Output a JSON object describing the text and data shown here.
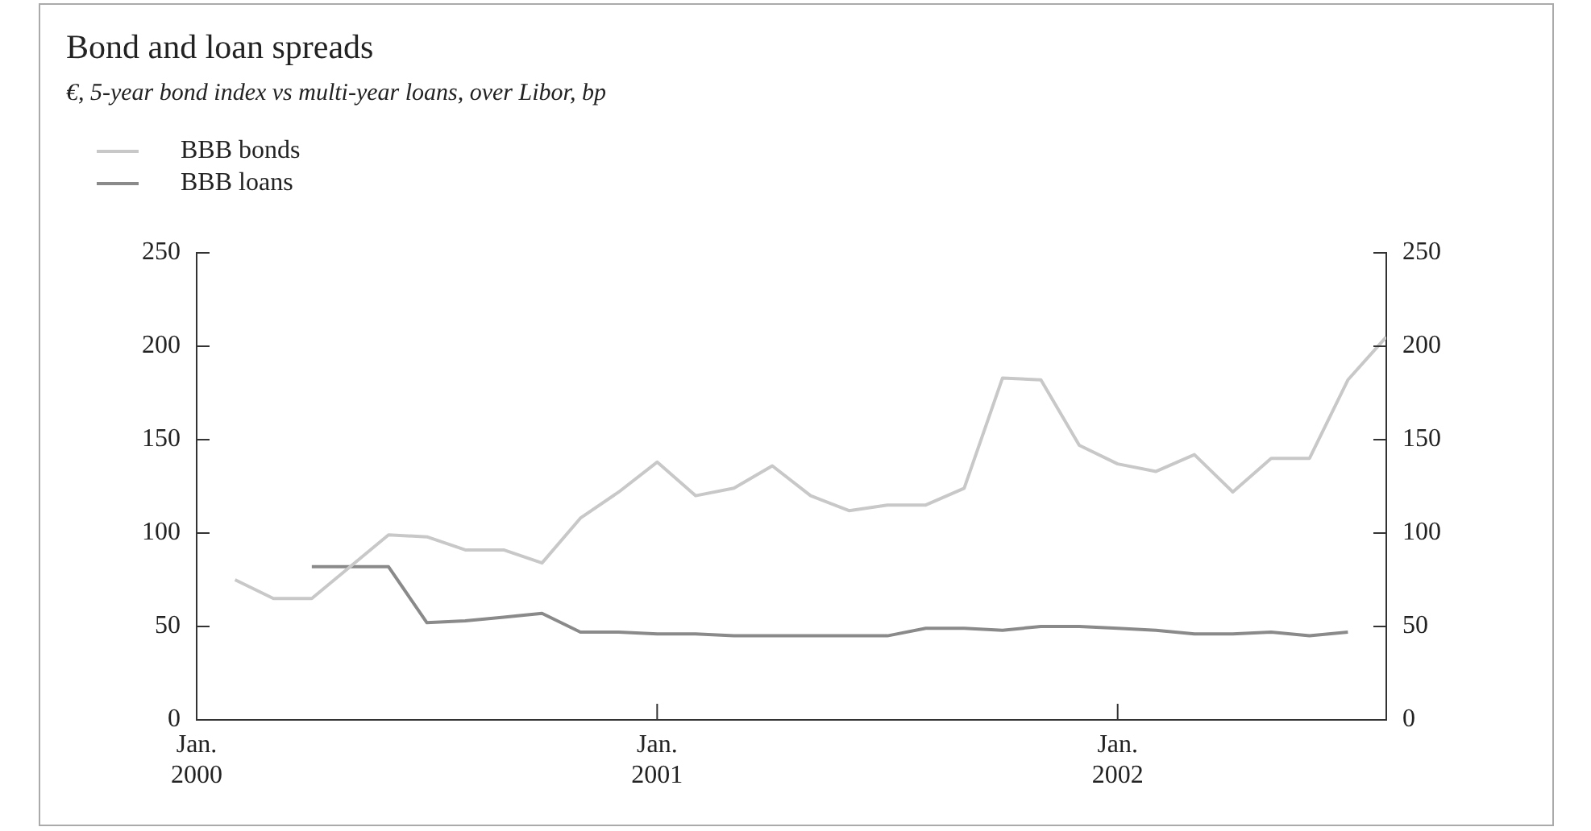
{
  "chart_data": {
    "type": "line",
    "title": "Bond and loan spreads",
    "subtitle": "€, 5-year bond index vs multi-year loans, over Libor, bp",
    "x": [
      "2000-02",
      "2000-03",
      "2000-04",
      "2000-05",
      "2000-06",
      "2000-07",
      "2000-08",
      "2000-09",
      "2000-10",
      "2000-11",
      "2000-12",
      "2001-01",
      "2001-02",
      "2001-03",
      "2001-04",
      "2001-05",
      "2001-06",
      "2001-07",
      "2001-08",
      "2001-09",
      "2001-10",
      "2001-11",
      "2001-12",
      "2002-01",
      "2002-02",
      "2002-03",
      "2002-04",
      "2002-05",
      "2002-06",
      "2002-07",
      "2002-08"
    ],
    "series": [
      {
        "name": "BBB bonds",
        "color": "#c8c8c8",
        "values": [
          75,
          65,
          65,
          82,
          99,
          98,
          91,
          91,
          84,
          108,
          122,
          138,
          120,
          124,
          136,
          120,
          112,
          115,
          115,
          124,
          183,
          182,
          147,
          137,
          133,
          142,
          122,
          140,
          140,
          182,
          205
        ]
      },
      {
        "name": "BBB loans",
        "color": "#8a8a8a",
        "values": [
          null,
          null,
          82,
          82,
          82,
          52,
          53,
          55,
          57,
          47,
          47,
          46,
          46,
          45,
          45,
          45,
          45,
          45,
          49,
          49,
          48,
          50,
          50,
          49,
          48,
          46,
          46,
          47,
          45,
          47,
          null
        ]
      }
    ],
    "xlim": [
      "2000-01",
      "2002-08"
    ],
    "xticks": [
      {
        "value": "2000-01",
        "label": "Jan.\n2000"
      },
      {
        "value": "2001-01",
        "label": "Jan.\n2001"
      },
      {
        "value": "2002-01",
        "label": "Jan.\n2002"
      }
    ],
    "ylim": [
      0,
      250
    ],
    "yticks": [
      0,
      50,
      100,
      150,
      200,
      250
    ],
    "y2lim": [
      0,
      250
    ],
    "y2ticks": [
      0,
      50,
      100,
      150,
      200,
      250
    ],
    "grid": false,
    "legend": "top left",
    "line_style": "solid",
    "marker": "none"
  }
}
